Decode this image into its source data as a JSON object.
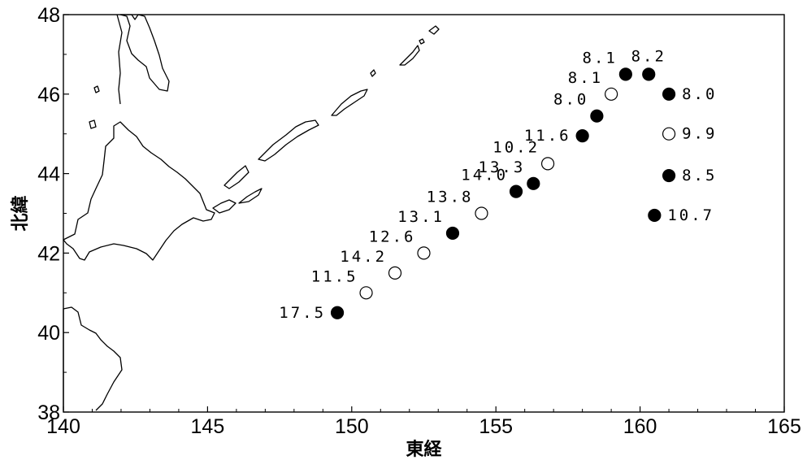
{
  "axes": {
    "x_label": "東経",
    "y_label": "北緯",
    "x_range": [
      140,
      165
    ],
    "y_range": [
      38,
      48
    ],
    "x_ticks": [
      "140",
      "145",
      "150",
      "155",
      "160",
      "165"
    ],
    "y_ticks": [
      "38",
      "40",
      "42",
      "44",
      "46",
      "48"
    ]
  },
  "colors": {
    "filled": "#000000",
    "open_fill": "#ffffff",
    "stroke": "#000000"
  },
  "points": [
    {
      "lon": 149.5,
      "lat": 40.5,
      "filled": true,
      "label": "17.5",
      "label_pos": "left"
    },
    {
      "lon": 150.5,
      "lat": 41.0,
      "filled": false,
      "label": "11.5",
      "label_pos": "above-left"
    },
    {
      "lon": 151.5,
      "lat": 41.5,
      "filled": false,
      "label": "14.2",
      "label_pos": "above-left"
    },
    {
      "lon": 152.5,
      "lat": 42.0,
      "filled": false,
      "label": "12.6",
      "label_pos": "above-left"
    },
    {
      "lon": 153.5,
      "lat": 42.5,
      "filled": true,
      "label": "13.1",
      "label_pos": "above-left"
    },
    {
      "lon": 154.5,
      "lat": 43.0,
      "filled": false,
      "label": "13.8",
      "label_pos": "above-left"
    },
    {
      "lon": 155.7,
      "lat": 43.55,
      "filled": true,
      "label": "14.0",
      "label_pos": "above-left"
    },
    {
      "lon": 156.3,
      "lat": 43.75,
      "filled": true,
      "label": "13.3",
      "label_pos": "above-left"
    },
    {
      "lon": 156.8,
      "lat": 44.25,
      "filled": false,
      "label": "10.2",
      "label_pos": "above-left"
    },
    {
      "lon": 158.0,
      "lat": 44.95,
      "filled": true,
      "label": "11.6",
      "label_pos": "left"
    },
    {
      "lon": 158.5,
      "lat": 45.45,
      "filled": true,
      "label": "8.0",
      "label_pos": "above-left"
    },
    {
      "lon": 159.0,
      "lat": 46.0,
      "filled": false,
      "label": "8.1",
      "label_pos": "above-left"
    },
    {
      "lon": 159.5,
      "lat": 46.5,
      "filled": true,
      "label": "8.1",
      "label_pos": "above-left"
    },
    {
      "lon": 160.3,
      "lat": 46.5,
      "filled": true,
      "label": "8.2",
      "label_pos": "above"
    },
    {
      "lon": 161.0,
      "lat": 46.0,
      "filled": true,
      "label": "8.0",
      "label_pos": "right"
    },
    {
      "lon": 161.0,
      "lat": 45.0,
      "filled": false,
      "label": "9.9",
      "label_pos": "right"
    },
    {
      "lon": 161.0,
      "lat": 43.95,
      "filled": true,
      "label": "8.5",
      "label_pos": "right"
    },
    {
      "lon": 160.5,
      "lat": 42.95,
      "filled": true,
      "label": "10.7",
      "label_pos": "right"
    }
  ]
}
